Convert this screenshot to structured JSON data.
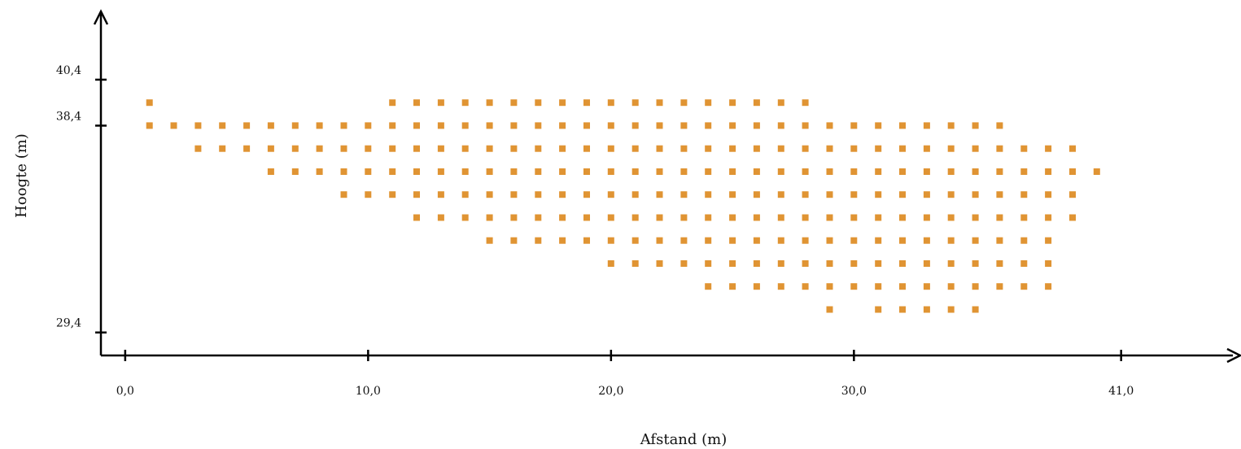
{
  "chart_data": {
    "type": "scatter",
    "title": "",
    "xlabel": "Afstand (m)",
    "ylabel": "Hoogte (m)",
    "x_ticks": [
      {
        "value": 0,
        "label": "0,0"
      },
      {
        "value": 10,
        "label": "10,0"
      },
      {
        "value": 20,
        "label": "20,0"
      },
      {
        "value": 30,
        "label": "30,0"
      },
      {
        "value": 41,
        "label": "41,0"
      }
    ],
    "y_ticks": [
      {
        "value": 29.4,
        "label": "29,4"
      },
      {
        "value": 38.4,
        "label": "38,4"
      },
      {
        "value": 40.4,
        "label": "40,4"
      }
    ],
    "xlim": [
      -1,
      45.6
    ],
    "ylim": [
      28.4,
      43.3
    ],
    "grid": false,
    "marker": "square",
    "color": "#e09433",
    "rows": [
      {
        "y": 39.4,
        "x": [
          1,
          11,
          12,
          13,
          14,
          15,
          16,
          17,
          18,
          19,
          20,
          21,
          22,
          23,
          24,
          25,
          26,
          27,
          28
        ]
      },
      {
        "y": 38.4,
        "x": [
          1,
          2,
          3,
          4,
          5,
          6,
          7,
          8,
          9,
          10,
          11,
          12,
          13,
          14,
          15,
          16,
          17,
          18,
          19,
          20,
          21,
          22,
          23,
          24,
          25,
          26,
          27,
          28,
          29,
          30,
          31,
          32,
          33,
          34,
          35,
          36
        ]
      },
      {
        "y": 37.4,
        "x": [
          3,
          4,
          5,
          6,
          7,
          8,
          9,
          10,
          11,
          12,
          13,
          14,
          15,
          16,
          17,
          18,
          19,
          20,
          21,
          22,
          23,
          24,
          25,
          26,
          27,
          28,
          29,
          30,
          31,
          32,
          33,
          34,
          35,
          36,
          37,
          38,
          39
        ]
      },
      {
        "y": 36.4,
        "x": [
          6,
          7,
          8,
          9,
          10,
          11,
          12,
          13,
          14,
          15,
          16,
          17,
          18,
          19,
          20,
          21,
          22,
          23,
          24,
          25,
          26,
          27,
          28,
          29,
          30,
          31,
          32,
          33,
          34,
          35,
          36,
          37,
          38,
          39,
          40
        ]
      },
      {
        "y": 35.4,
        "x": [
          9,
          10,
          11,
          12,
          13,
          14,
          15,
          16,
          17,
          18,
          19,
          20,
          21,
          22,
          23,
          24,
          25,
          26,
          27,
          28,
          29,
          30,
          31,
          32,
          33,
          34,
          35,
          36,
          37,
          38,
          39
        ]
      },
      {
        "y": 34.4,
        "x": [
          12,
          13,
          14,
          15,
          16,
          17,
          18,
          19,
          20,
          21,
          22,
          23,
          24,
          25,
          26,
          27,
          28,
          29,
          30,
          31,
          32,
          33,
          34,
          35,
          36,
          37,
          38,
          39
        ]
      },
      {
        "y": 33.4,
        "x": [
          15,
          16,
          17,
          18,
          19,
          20,
          21,
          22,
          23,
          24,
          25,
          26,
          27,
          28,
          29,
          30,
          31,
          32,
          33,
          34,
          35,
          36,
          37,
          38
        ]
      },
      {
        "y": 32.4,
        "x": [
          20,
          21,
          22,
          23,
          24,
          25,
          26,
          27,
          28,
          29,
          30,
          31,
          32,
          33,
          34,
          35,
          36,
          37,
          38
        ]
      },
      {
        "y": 31.4,
        "x": [
          24,
          25,
          26,
          27,
          28,
          29,
          30,
          31,
          32,
          33,
          34,
          35,
          36,
          37,
          38
        ]
      },
      {
        "y": 30.4,
        "x": [
          29,
          31,
          32,
          33,
          34,
          35
        ]
      }
    ]
  }
}
